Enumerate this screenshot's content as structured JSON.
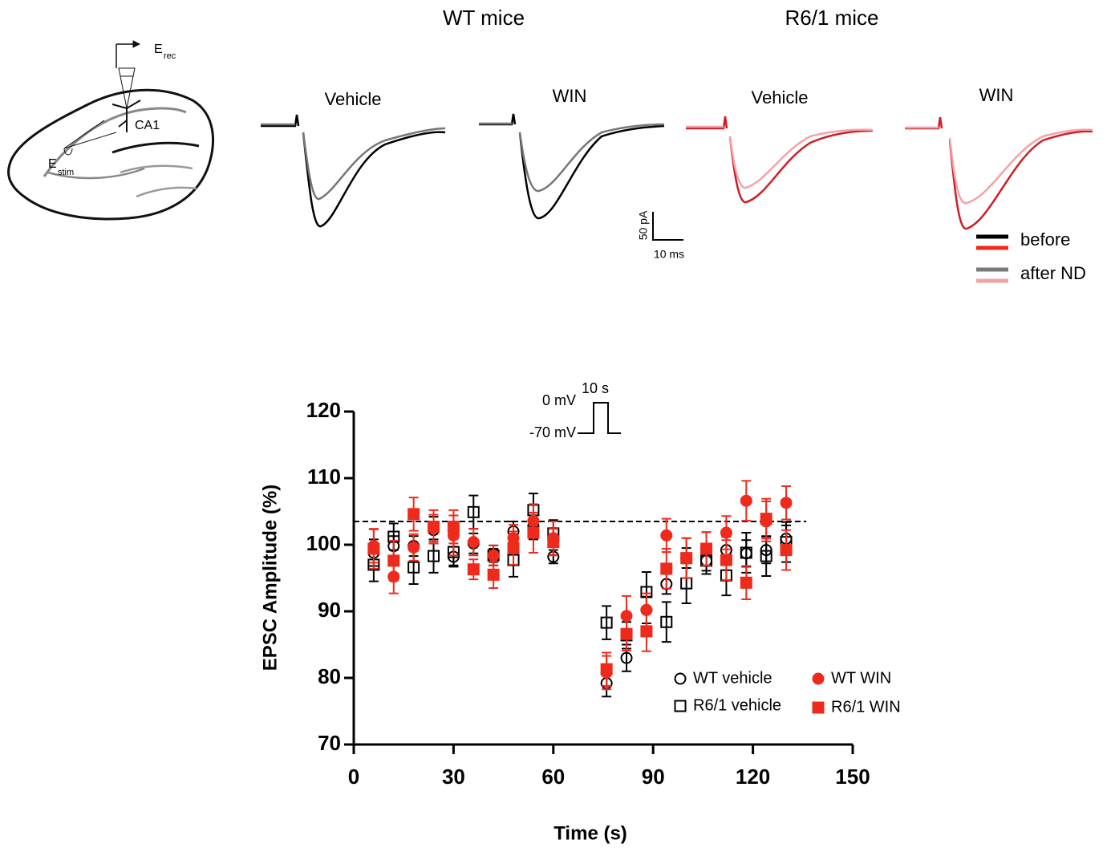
{
  "figure_texts": {
    "group_wt": "WT mice",
    "group_r61": "R6/1 mice",
    "trace_labels": [
      "Vehicle",
      "WIN",
      "Vehicle",
      "WIN"
    ],
    "scale_y": "50 pA",
    "scale_x": "10 ms",
    "trace_legend": [
      "before",
      "after ND"
    ],
    "diagram": {
      "rec": "E",
      "rec_sub": "rec",
      "region": "CA1",
      "stim": "E",
      "stim_sub": "stim"
    }
  },
  "chart_data": {
    "type": "scatter",
    "xlabel": "Time (s)",
    "ylabel": "EPSC Amplitude (%)",
    "inset": {
      "high": "0 mV",
      "duration": "10 s",
      "low": "-70 mV"
    },
    "xlim": [
      0,
      150
    ],
    "xticks": [
      0,
      30,
      60,
      90,
      120,
      150
    ],
    "ylim": [
      70,
      120
    ],
    "yticks": [
      70,
      80,
      90,
      100,
      110,
      120
    ],
    "reference_line": 103.5,
    "x": [
      6,
      12,
      18,
      24,
      30,
      36,
      42,
      48,
      54,
      60,
      76,
      82,
      88,
      94,
      100,
      106,
      112,
      118,
      124,
      130
    ],
    "series": [
      {
        "name": "WT vehicle",
        "color": "#000000",
        "marker": "circle",
        "filled": false,
        "values": [
          98.8,
          99.8,
          99.8,
          102.2,
          98.2,
          100.2,
          98.4,
          102.0,
          102.8,
          98.2,
          79.2,
          83.0,
          90.2,
          94.1,
          98.0,
          97.6,
          99.2,
          98.7,
          99.2,
          100.9
        ],
        "errors": [
          2,
          1.5,
          1.5,
          2,
          1.5,
          1.5,
          1,
          1.5,
          2,
          1,
          2,
          2,
          2,
          1.5,
          1.5,
          1.5,
          2,
          2,
          2,
          2
        ]
      },
      {
        "name": "R6/1 vehicle",
        "color": "#000000",
        "marker": "square",
        "filled": false,
        "values": [
          97.0,
          101.2,
          96.6,
          98.3,
          98.9,
          104.9,
          98.4,
          97.7,
          105.2,
          101.7,
          88.3,
          86.4,
          92.9,
          88.4,
          94.2,
          97.6,
          95.4,
          98.8,
          98.3,
          100.4
        ],
        "errors": [
          2.5,
          2,
          2.5,
          2.5,
          2,
          2.5,
          1.5,
          2.5,
          2.5,
          2,
          2.5,
          2,
          3,
          3,
          3,
          2,
          3,
          3,
          3,
          3
        ]
      },
      {
        "name": "WT WIN",
        "color": "#ee2a1d",
        "marker": "circle",
        "filled": true,
        "values": [
          99.8,
          95.2,
          99.6,
          102.5,
          101.4,
          100.4,
          98.4,
          101.0,
          103.6,
          101.0,
          80.8,
          89.3,
          90.2,
          101.4,
          98.0,
          99.4,
          101.8,
          106.6,
          103.5,
          106.3
        ],
        "errors": [
          2.5,
          2.5,
          2,
          2,
          3,
          2,
          1.5,
          2,
          2.5,
          2.5,
          2.5,
          3,
          2.5,
          2.5,
          3,
          2.5,
          2.5,
          3,
          3,
          2.5
        ]
      },
      {
        "name": "R6/1 WIN",
        "color": "#ee2a1d",
        "marker": "square",
        "filled": true,
        "values": [
          99.4,
          97.6,
          104.6,
          102.7,
          102.7,
          96.3,
          95.5,
          99.5,
          101.8,
          100.4,
          81.3,
          86.6,
          87.0,
          96.4,
          98.0,
          99.4,
          97.7,
          94.3,
          103.9,
          99.2
        ],
        "errors": [
          3,
          3,
          2.5,
          2.5,
          2.5,
          1.5,
          2,
          2.5,
          3,
          2,
          2.5,
          2.5,
          3,
          3,
          3,
          2.5,
          3,
          2.5,
          3,
          3
        ]
      }
    ]
  }
}
